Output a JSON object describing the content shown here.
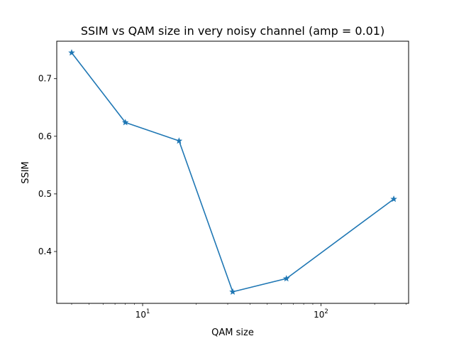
{
  "chart_data": {
    "type": "line",
    "title": "SSIM vs QAM size in very noisy channel (amp = 0.01)",
    "xlabel": "QAM size",
    "ylabel": "SSIM",
    "xscale": "log",
    "xlim": [
      3.3,
      310
    ],
    "ylim": [
      0.31,
      0.765
    ],
    "x_major_ticks": [
      {
        "value": 10,
        "base": "10",
        "exp": "1"
      },
      {
        "value": 100,
        "base": "10",
        "exp": "2"
      }
    ],
    "y_ticks": [
      {
        "value": 0.4,
        "label": "0.4"
      },
      {
        "value": 0.5,
        "label": "0.5"
      },
      {
        "value": 0.6,
        "label": "0.6"
      },
      {
        "value": 0.7,
        "label": "0.7"
      }
    ],
    "grid": false,
    "legend": "none",
    "series": [
      {
        "marker": "star",
        "color": "#1f77b4",
        "points": [
          {
            "x": 4,
            "y": 0.745
          },
          {
            "x": 8,
            "y": 0.624
          },
          {
            "x": 16,
            "y": 0.592
          },
          {
            "x": 32,
            "y": 0.33
          },
          {
            "x": 64,
            "y": 0.353
          },
          {
            "x": 256,
            "y": 0.491
          }
        ]
      }
    ]
  }
}
